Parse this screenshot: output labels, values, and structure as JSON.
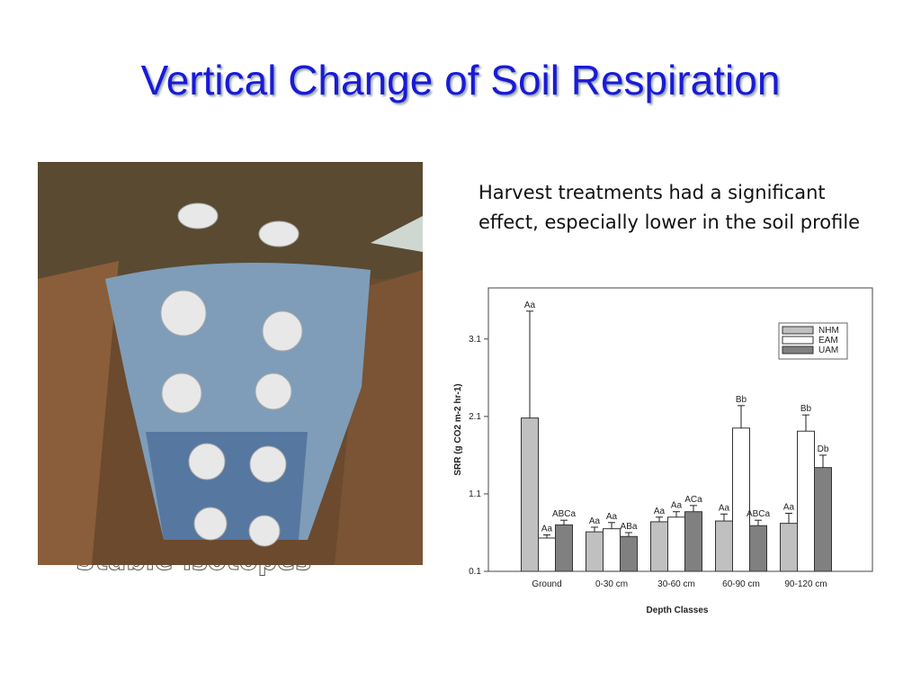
{
  "title": "Vertical Change of Soil Respiration",
  "body": [
    "Harvest treatments had a significant",
    "effect, especially lower in the soil profile"
  ],
  "hidden_text": "Stable isotopes",
  "chart_data": {
    "type": "bar",
    "xlabel": "Depth Classes",
    "ylabel": "SRR (g CO2 m-2 hr-1)",
    "categories": [
      "Ground",
      "0-30 cm",
      "30-60 cm",
      "60-90 cm",
      "90-120 cm"
    ],
    "series": [
      {
        "name": "NHM",
        "color": "#c0c0c0",
        "values": [
          2.08,
          0.61,
          0.74,
          0.75,
          0.72
        ],
        "errors": [
          1.38,
          0.06,
          0.06,
          0.09,
          0.13
        ],
        "labels": [
          "Aa",
          "Aa",
          "Aa",
          "Aa",
          "Aa"
        ]
      },
      {
        "name": "EAM",
        "color": "#ffffff",
        "values": [
          0.53,
          0.65,
          0.8,
          1.95,
          1.91
        ],
        "errors": [
          0.04,
          0.08,
          0.07,
          0.29,
          0.21
        ],
        "labels": [
          "Aa",
          "Aa",
          "Aa",
          "Bb",
          "Bb"
        ]
      },
      {
        "name": "UAM",
        "color": "#808080",
        "values": [
          0.7,
          0.55,
          0.87,
          0.69,
          1.44
        ],
        "errors": [
          0.06,
          0.05,
          0.08,
          0.07,
          0.16
        ],
        "labels": [
          "ABCa",
          "ABa",
          "ACa",
          "ABCa",
          "Db"
        ]
      }
    ],
    "ylim": [
      0.1,
      3.76
    ],
    "yticks": [
      0.1,
      1.1,
      2.1,
      3.1
    ],
    "legend": "upper-right"
  }
}
